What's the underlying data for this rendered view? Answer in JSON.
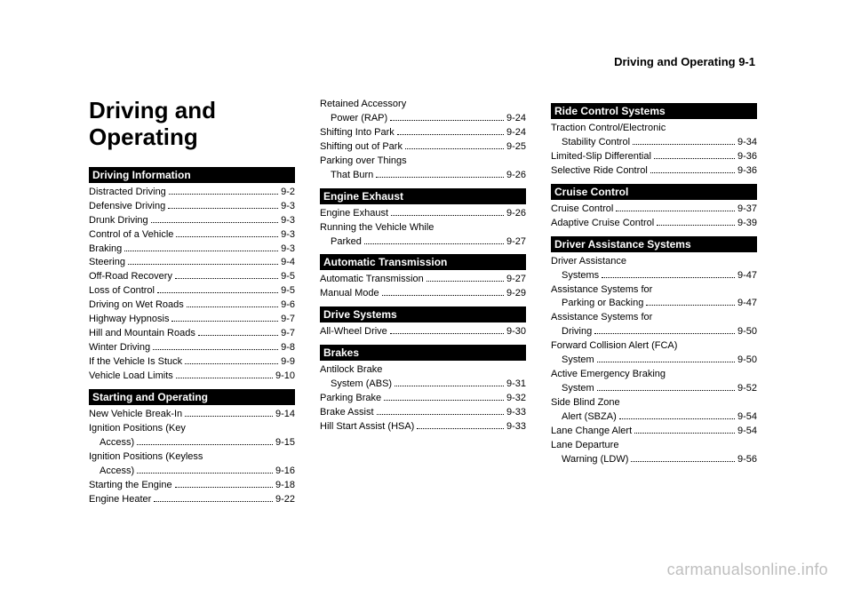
{
  "header": "Driving and Operating     9-1",
  "chapter_title": "Driving and Operating",
  "watermark": "carmanualsonline.info",
  "columns": [
    {
      "title_here": true,
      "sections": [
        {
          "header": "Driving Information",
          "entries": [
            {
              "label": "Distracted Driving",
              "page": "9-2"
            },
            {
              "label": "Defensive Driving",
              "page": "9-3"
            },
            {
              "label": "Drunk Driving",
              "page": "9-3"
            },
            {
              "label": "Control of a Vehicle",
              "page": "9-3"
            },
            {
              "label": "Braking",
              "page": "9-3"
            },
            {
              "label": "Steering",
              "page": "9-4"
            },
            {
              "label": "Off-Road Recovery",
              "page": "9-5"
            },
            {
              "label": "Loss of Control",
              "page": "9-5"
            },
            {
              "label": "Driving on Wet Roads",
              "page": "9-6"
            },
            {
              "label": "Highway Hypnosis",
              "page": "9-7"
            },
            {
              "label": "Hill and Mountain Roads",
              "page": "9-7"
            },
            {
              "label": "Winter Driving",
              "page": "9-8"
            },
            {
              "label": "If the Vehicle Is Stuck",
              "page": "9-9"
            },
            {
              "label": "Vehicle Load Limits",
              "page": "9-10"
            }
          ]
        },
        {
          "header": "Starting and Operating",
          "entries": [
            {
              "label": "New Vehicle Break-In",
              "page": "9-14"
            },
            {
              "label": "Ignition Positions (Key",
              "cont": "Access)",
              "page": "9-15"
            },
            {
              "label": "Ignition Positions (Keyless",
              "cont": "Access)",
              "page": "9-16"
            },
            {
              "label": "Starting the Engine",
              "page": "9-18"
            },
            {
              "label": "Engine Heater",
              "page": "9-22"
            }
          ]
        }
      ]
    },
    {
      "sections": [
        {
          "entries": [
            {
              "label": "Retained Accessory",
              "cont": "Power (RAP)",
              "page": "9-24"
            },
            {
              "label": "Shifting Into Park",
              "page": "9-24"
            },
            {
              "label": "Shifting out of Park",
              "page": "9-25"
            },
            {
              "label": "Parking over Things",
              "cont": "That Burn",
              "page": "9-26"
            }
          ]
        },
        {
          "header": "Engine Exhaust",
          "entries": [
            {
              "label": "Engine Exhaust",
              "page": "9-26"
            },
            {
              "label": "Running the Vehicle While",
              "cont": "Parked",
              "page": "9-27"
            }
          ]
        },
        {
          "header": "Automatic Transmission",
          "entries": [
            {
              "label": "Automatic Transmission",
              "page": "9-27"
            },
            {
              "label": "Manual Mode",
              "page": "9-29"
            }
          ]
        },
        {
          "header": "Drive Systems",
          "entries": [
            {
              "label": "All-Wheel Drive",
              "page": "9-30"
            }
          ]
        },
        {
          "header": "Brakes",
          "entries": [
            {
              "label": "Antilock Brake",
              "cont": "System (ABS)",
              "page": "9-31"
            },
            {
              "label": "Parking Brake",
              "page": "9-32"
            },
            {
              "label": "Brake Assist",
              "page": "9-33"
            },
            {
              "label": "Hill Start Assist (HSA)",
              "page": "9-33"
            }
          ]
        }
      ]
    },
    {
      "sections": [
        {
          "header": "Ride Control Systems",
          "entries": [
            {
              "label": "Traction Control/Electronic",
              "cont": "Stability Control",
              "page": "9-34"
            },
            {
              "label": "Limited-Slip Differential",
              "page": "9-36"
            },
            {
              "label": "Selective Ride Control",
              "page": "9-36"
            }
          ]
        },
        {
          "header": "Cruise Control",
          "entries": [
            {
              "label": "Cruise Control",
              "page": "9-37"
            },
            {
              "label": "Adaptive Cruise Control",
              "page": "9-39"
            }
          ]
        },
        {
          "header": "Driver Assistance Systems",
          "entries": [
            {
              "label": "Driver Assistance",
              "cont": "Systems",
              "page": "9-47"
            },
            {
              "label": "Assistance Systems for",
              "cont": "Parking or Backing",
              "page": "9-47"
            },
            {
              "label": "Assistance Systems for",
              "cont": "Driving",
              "page": "9-50"
            },
            {
              "label": "Forward Collision Alert (FCA)",
              "cont": "System",
              "page": "9-50"
            },
            {
              "label": "Active Emergency Braking",
              "cont": "System",
              "page": "9-52"
            },
            {
              "label": "Side Blind Zone",
              "cont": "Alert (SBZA)",
              "page": "9-54"
            },
            {
              "label": "Lane Change Alert",
              "page": "9-54"
            },
            {
              "label": "Lane Departure",
              "cont": "Warning (LDW)",
              "page": "9-56"
            }
          ]
        }
      ]
    }
  ]
}
